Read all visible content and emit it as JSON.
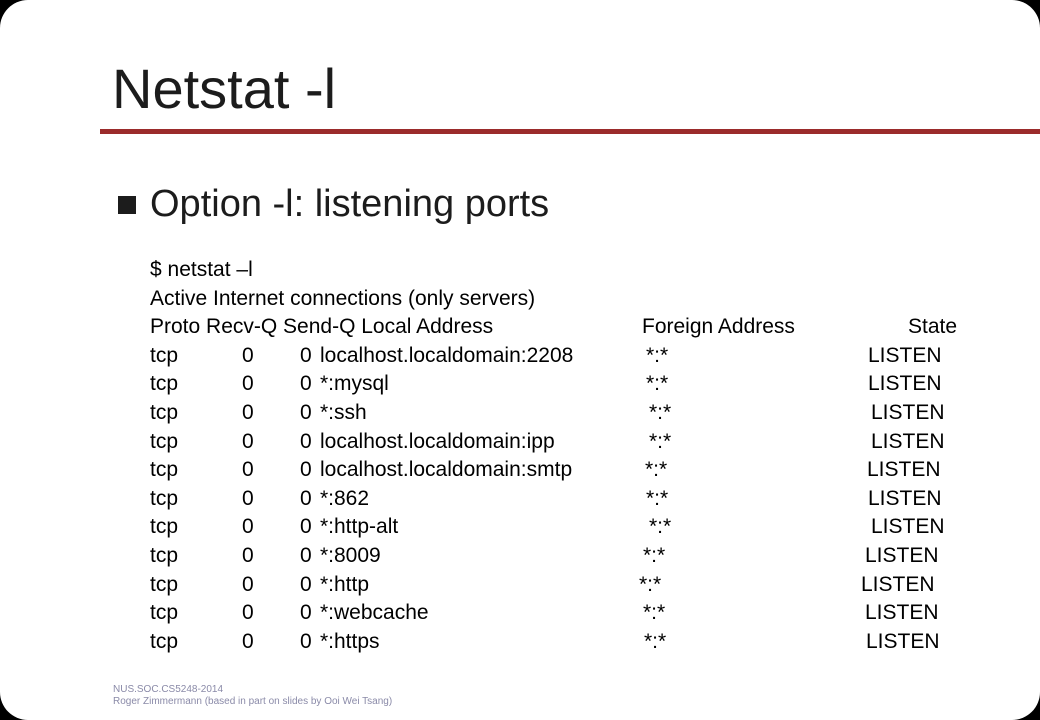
{
  "slide": {
    "title": "Netstat -l",
    "bullet": "Option -l: listening ports",
    "terminal": {
      "command": "$ netstat –l",
      "heading": "Active Internet connections (only servers)",
      "columns": [
        "Proto",
        "Recv-Q",
        "Send-Q",
        "Local Address",
        "Foreign Address",
        "State"
      ],
      "header_line": "Proto Recv-Q Send-Q Local Address",
      "header_foreign": "Foreign Address",
      "header_state": "State",
      "rows": [
        {
          "proto": "tcp",
          "recv": "0",
          "send": "0",
          "local": "localhost.localdomain:2208",
          "foreign": "*:*",
          "state": "LISTEN"
        },
        {
          "proto": "tcp",
          "recv": "0",
          "send": "0",
          "local": "*:mysql",
          "foreign": "*:*",
          "state": "LISTEN"
        },
        {
          "proto": "tcp",
          "recv": "0",
          "send": "0",
          "local": "*:ssh",
          "foreign": "*:*",
          "state": "LISTEN"
        },
        {
          "proto": "tcp",
          "recv": "0",
          "send": "0",
          "local": "localhost.localdomain:ipp",
          "foreign": "*:*",
          "state": "LISTEN"
        },
        {
          "proto": "tcp",
          "recv": "0",
          "send": "0",
          "local": "localhost.localdomain:smtp",
          "foreign": "*:*",
          "state": "LISTEN"
        },
        {
          "proto": "tcp",
          "recv": "0",
          "send": "0",
          "local": "*:862",
          "foreign": "*:*",
          "state": "LISTEN"
        },
        {
          "proto": "tcp",
          "recv": "0",
          "send": "0",
          "local": "*:http-alt",
          "foreign": "*:*",
          "state": "LISTEN"
        },
        {
          "proto": "tcp",
          "recv": "0",
          "send": "0",
          "local": "*:8009",
          "foreign": "*:*",
          "state": "LISTEN"
        },
        {
          "proto": "tcp",
          "recv": "0",
          "send": "0",
          "local": "*:http",
          "foreign": "*:*",
          "state": "LISTEN"
        },
        {
          "proto": "tcp",
          "recv": "0",
          "send": "0",
          "local": "*:webcache",
          "foreign": "*:*",
          "state": "LISTEN"
        },
        {
          "proto": "tcp",
          "recv": "0",
          "send": "0",
          "local": "*:https",
          "foreign": "*:*",
          "state": "LISTEN"
        }
      ]
    },
    "footer": {
      "line1": "NUS.SOC.CS5248-2014",
      "line2": "Roger Zimmermann (based in part on slides by Ooi Wei Tsang)"
    },
    "colors": {
      "rule": "#9b2b2b",
      "text": "#1c1c1c",
      "footer": "#8a8aa8"
    }
  }
}
